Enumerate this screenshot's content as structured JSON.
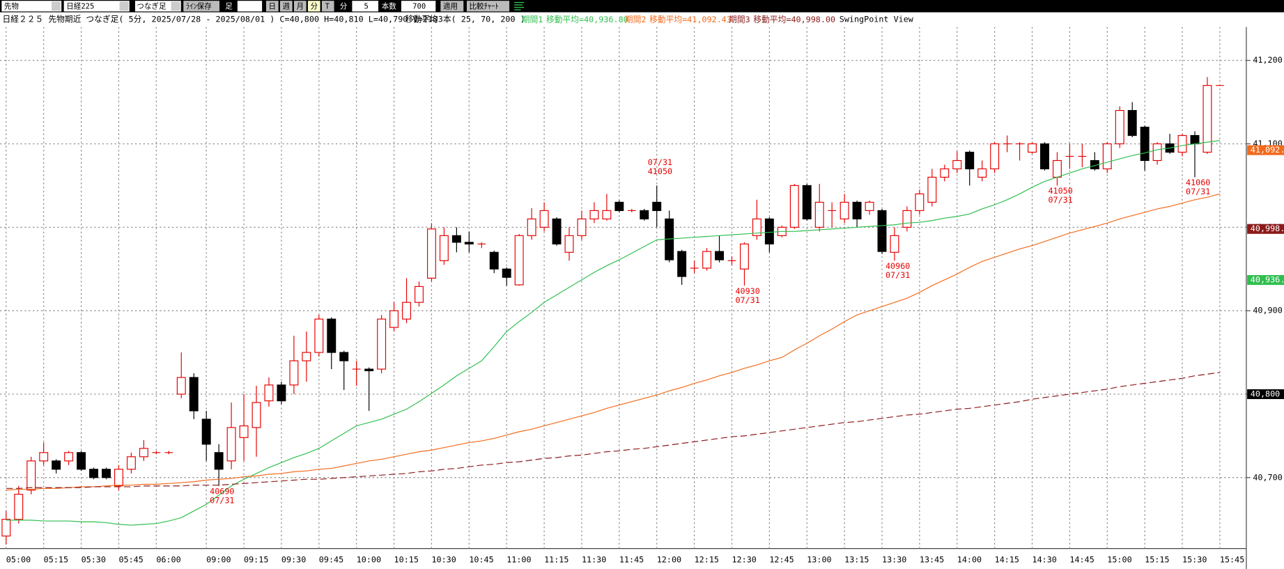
{
  "toolbar": {
    "market": "先物",
    "symbol": "日経225",
    "mode": "つなぎ足",
    "save": "ﾗｲﾝ保存",
    "foot": "足",
    "day": "日",
    "week": "週",
    "month": "月",
    "minute": "分",
    "tick": "T",
    "unit": "分",
    "interval": "5",
    "count_label": "本数",
    "count": "700",
    "apply": "適用",
    "compare": "比較ﾁｬｰﾄ"
  },
  "chart_data": {
    "type": "candlestick",
    "title": "日経２２５ 先物期近 つなぎ足( 5分, 2025/07/28 - 2025/08/01 )  C=40,800 H=40,810 L=40,790 V=218",
    "subtitle": "移動平均3本( 25, 70, 200 )",
    "view": "SwingPoint View",
    "up_color": "#e60000",
    "down_color": "#000000",
    "grid": true,
    "ylim": [
      40615,
      41240
    ],
    "yticks": [
      {
        "value": 40700,
        "label": "40,700"
      },
      {
        "value": 40800,
        "label": "40,800"
      },
      {
        "value": 40900,
        "label": "40,900"
      },
      {
        "value": 41000,
        "label": "41,000"
      },
      {
        "value": 41100,
        "label": "41,100"
      },
      {
        "value": 41200,
        "label": "41,200"
      }
    ],
    "close": 40800,
    "close_label": "40,800",
    "categories": [
      "05:00",
      null,
      null,
      "05:15",
      null,
      null,
      "05:30",
      null,
      null,
      "05:45",
      null,
      null,
      "06:00",
      null,
      null,
      null,
      "09:00",
      null,
      null,
      "09:15",
      null,
      null,
      "09:30",
      null,
      null,
      "09:45",
      null,
      null,
      "10:00",
      null,
      null,
      "10:15",
      null,
      null,
      "10:30",
      null,
      null,
      "10:45",
      null,
      null,
      "11:00",
      null,
      null,
      "11:15",
      null,
      null,
      "11:30",
      null,
      null,
      "11:45",
      null,
      null,
      "12:00",
      null,
      null,
      "12:15",
      null,
      null,
      "12:30",
      null,
      null,
      "12:45",
      null,
      null,
      "13:00",
      null,
      null,
      "13:15",
      null,
      null,
      "13:30",
      null,
      null,
      "13:45",
      null,
      null,
      "14:00",
      null,
      null,
      "14:15",
      null,
      null,
      "14:30",
      null,
      null,
      "14:45",
      null,
      null,
      "15:00",
      null,
      null,
      "15:15",
      null,
      null,
      "15:30",
      null,
      null,
      "15:45"
    ],
    "ohlc": [
      [
        40630,
        40660,
        40620,
        40650
      ],
      [
        40650,
        40690,
        40645,
        40680
      ],
      [
        40685,
        40725,
        40680,
        40720
      ],
      [
        40720,
        40742,
        40715,
        40730
      ],
      [
        40720,
        40722,
        40705,
        40710
      ],
      [
        40720,
        40732,
        40715,
        40730
      ],
      [
        40730,
        40732,
        40708,
        40710
      ],
      [
        40710,
        40712,
        40698,
        40700
      ],
      [
        40710,
        40712,
        40698,
        40700
      ],
      [
        40690,
        40715,
        40685,
        40710
      ],
      [
        40710,
        40730,
        40705,
        40725
      ],
      [
        40725,
        40745,
        40720,
        40735
      ],
      [
        40730,
        40732,
        40728,
        40730
      ],
      [
        40730,
        40732,
        40728,
        40730
      ],
      [
        40800,
        40850,
        40795,
        40820
      ],
      [
        40820,
        40825,
        40770,
        40780
      ],
      [
        40770,
        40780,
        40720,
        40740
      ],
      [
        40730,
        40740,
        40690,
        40710
      ],
      [
        40720,
        40790,
        40710,
        40760
      ],
      [
        40748,
        40800,
        40720,
        40762
      ],
      [
        40760,
        40810,
        40725,
        40790
      ],
      [
        40792,
        40820,
        40785,
        40811
      ],
      [
        40811,
        40815,
        40788,
        40792
      ],
      [
        40811,
        40870,
        40800,
        40840
      ],
      [
        40840,
        40875,
        40815,
        40850
      ],
      [
        40850,
        40895,
        40845,
        40890
      ],
      [
        40890,
        40892,
        40830,
        40850
      ],
      [
        40850,
        40852,
        40805,
        40840
      ],
      [
        40830,
        40840,
        40810,
        40830
      ],
      [
        40830,
        40832,
        40780,
        40828
      ],
      [
        40830,
        40895,
        40825,
        40890
      ],
      [
        40880,
        40910,
        40875,
        40900
      ],
      [
        40890,
        40939,
        40885,
        40910
      ],
      [
        40910,
        40935,
        40905,
        40929
      ],
      [
        40939,
        41005,
        40935,
        40998
      ],
      [
        40960,
        41000,
        40955,
        40990
      ],
      [
        40990,
        41000,
        40970,
        40982
      ],
      [
        40982,
        40995,
        40970,
        40980
      ],
      [
        40980,
        40982,
        40975,
        40980
      ],
      [
        40970,
        40972,
        40945,
        40950
      ],
      [
        40950,
        40952,
        40930,
        40940
      ],
      [
        40931,
        40992,
        40930,
        40990
      ],
      [
        40990,
        41023,
        40985,
        41010
      ],
      [
        41000,
        41030,
        40995,
        41020
      ],
      [
        41010,
        41012,
        40978,
        40980
      ],
      [
        40970,
        41000,
        40960,
        40990
      ],
      [
        40990,
        41020,
        40985,
        41010
      ],
      [
        41010,
        41030,
        41005,
        41020
      ],
      [
        41010,
        41040,
        41008,
        41020
      ],
      [
        41030,
        41032,
        41018,
        41020
      ],
      [
        41020,
        41022,
        41018,
        41020
      ],
      [
        41020,
        41022,
        41008,
        41010
      ],
      [
        41030,
        41050,
        41000,
        41020
      ],
      [
        41010,
        41020,
        40958,
        40961
      ],
      [
        40971,
        40973,
        40931,
        40941
      ],
      [
        40951,
        40960,
        40945,
        40951
      ],
      [
        40951,
        40975,
        40948,
        40971
      ],
      [
        40971,
        40990,
        40958,
        40961
      ],
      [
        40960,
        40965,
        40955,
        40960
      ],
      [
        40950,
        40982,
        40930,
        40980
      ],
      [
        40990,
        41033,
        40985,
        41010
      ],
      [
        41010,
        41012,
        40970,
        40980
      ],
      [
        40990,
        41002,
        40988,
        41000
      ],
      [
        41000,
        41052,
        40998,
        41050
      ],
      [
        41050,
        41052,
        41008,
        41010
      ],
      [
        41000,
        41052,
        40995,
        41030
      ],
      [
        41020,
        41030,
        41000,
        41020
      ],
      [
        41010,
        41040,
        41005,
        41030
      ],
      [
        41030,
        41032,
        41000,
        41010
      ],
      [
        41020,
        41032,
        41015,
        41030
      ],
      [
        41020,
        41022,
        40968,
        40971
      ],
      [
        40970,
        41000,
        40960,
        40990
      ],
      [
        41000,
        41025,
        40995,
        41020
      ],
      [
        41020,
        41045,
        41015,
        41040
      ],
      [
        41030,
        41070,
        41025,
        41060
      ],
      [
        41060,
        41075,
        41055,
        41070
      ],
      [
        41070,
        41091,
        41065,
        41080
      ],
      [
        41090,
        41092,
        41050,
        41070
      ],
      [
        41060,
        41080,
        41055,
        41070
      ],
      [
        41070,
        41102,
        41065,
        41100
      ],
      [
        41100,
        41110,
        41090,
        41100
      ],
      [
        41100,
        41102,
        41080,
        41100
      ],
      [
        41090,
        41102,
        41088,
        41100
      ],
      [
        41100,
        41102,
        41068,
        41070
      ],
      [
        41060,
        41090,
        41050,
        41080
      ],
      [
        41085,
        41100,
        41070,
        41085
      ],
      [
        41085,
        41100,
        41072,
        41085
      ],
      [
        41080,
        41090,
        41068,
        41070
      ],
      [
        41070,
        41102,
        41065,
        41100
      ],
      [
        41100,
        41145,
        41095,
        41140
      ],
      [
        41140,
        41150,
        41108,
        41110
      ],
      [
        41120,
        41122,
        41068,
        41080
      ],
      [
        41080,
        41102,
        41075,
        41100
      ],
      [
        41100,
        41112,
        41088,
        41090
      ],
      [
        41090,
        41112,
        41085,
        41110
      ],
      [
        41110,
        41115,
        41060,
        41100
      ],
      [
        41090,
        41180,
        41088,
        41170
      ],
      [
        41170,
        41170,
        41170,
        41170
      ]
    ],
    "series": [
      {
        "name": "期間1",
        "ma_text": "移動平均=",
        "current": 40936.8,
        "current_label": "40,936.80",
        "color": "#2fbf4f",
        "dashed": false,
        "values": [
          40649,
          40649,
          40649,
          40648,
          40648,
          40648,
          40647,
          40647,
          40646,
          40644,
          40643,
          40644,
          40645,
          40648,
          40652,
          40660,
          40668,
          40679,
          40690,
          40698,
          40705,
          40712,
          40718,
          40724,
          40729,
          40735,
          40744,
          40753,
          40762,
          40766,
          40770,
          40776,
          40782,
          40791,
          40801,
          40811,
          40822,
          40831,
          40840,
          40857,
          40875,
          40887,
          40898,
          40910,
          40919,
          40928,
          40937,
          40946,
          40954,
          40961,
          40969,
          40977,
          40985,
          40986,
          40987,
          40988,
          40989,
          40990,
          40991,
          40992,
          40993,
          40994,
          40995,
          40995,
          40996,
          40997,
          40998,
          40999,
          41000,
          41001,
          41002,
          41003,
          41005,
          41006,
          41008,
          41011,
          41013,
          41016,
          41022,
          41027,
          41033,
          41040,
          41048,
          41055,
          41060,
          41065,
          41070,
          41074,
          41078,
          41082,
          41086,
          41089,
          41093,
          41095,
          41098,
          41100,
          41102,
          41104
        ]
      },
      {
        "name": "期間2",
        "ma_text": "移動平均=",
        "current": 41092.43,
        "current_label": "41,092.43",
        "color": "#f26b1d",
        "dashed": false,
        "values": [
          40685,
          40686,
          40686,
          40687,
          40687,
          40688,
          40689,
          40689,
          40690,
          40691,
          40691,
          40692,
          40692,
          40693,
          40694,
          40695,
          40697,
          40698,
          40699,
          40701,
          40702,
          40704,
          40705,
          40707,
          40708,
          40710,
          40711,
          40714,
          40717,
          40720,
          40722,
          40725,
          40728,
          40731,
          40733,
          40736,
          40739,
          40742,
          40744,
          40747,
          40751,
          40755,
          40758,
          40762,
          40766,
          40770,
          40774,
          40778,
          40783,
          40787,
          40791,
          40795,
          40799,
          40804,
          40808,
          40813,
          40817,
          40822,
          40826,
          40831,
          40835,
          40840,
          40844,
          40853,
          40861,
          40870,
          40878,
          40887,
          40895,
          40900,
          40905,
          40910,
          40915,
          40922,
          40930,
          40937,
          40944,
          40952,
          40959,
          40964,
          40969,
          40974,
          40978,
          40983,
          40988,
          40993,
          40997,
          41001,
          41005,
          41010,
          41014,
          41018,
          41022,
          41025,
          41029,
          41033,
          41036,
          41040
        ]
      },
      {
        "name": "期間3",
        "ma_text": "移動平均=",
        "current": 40998.0,
        "current_label": "40,998.00",
        "color": "#8b1a1a",
        "dashed": true,
        "values": [
          40687,
          40687,
          40688,
          40688,
          40688,
          40688,
          40688,
          40689,
          40689,
          40689,
          40689,
          40690,
          40690,
          40690,
          40690,
          40691,
          40691,
          40691,
          40692,
          40693,
          40694,
          40695,
          40696,
          40697,
          40698,
          40698,
          40699,
          40700,
          40701,
          40702,
          40703,
          40704,
          40705,
          40707,
          40708,
          40710,
          40711,
          40713,
          40715,
          40716,
          40718,
          40719,
          40721,
          40723,
          40724,
          40726,
          40727,
          40729,
          40731,
          40732,
          40734,
          40735,
          40737,
          40739,
          40741,
          40743,
          40745,
          40747,
          40749,
          40750,
          40752,
          40754,
          40756,
          40758,
          40760,
          40762,
          40764,
          40766,
          40767,
          40769,
          40771,
          40773,
          40775,
          40776,
          40778,
          40780,
          40782,
          40783,
          40785,
          40787,
          40789,
          40791,
          40794,
          40796,
          40798,
          40800,
          40802,
          40804,
          40806,
          40809,
          40811,
          40813,
          40815,
          40817,
          40819,
          40822,
          40824,
          40826
        ]
      }
    ],
    "annotations": [
      {
        "x": 17,
        "value": 40690,
        "date": "07/31"
      },
      {
        "x": 52,
        "value": 41050,
        "date": "07/31"
      },
      {
        "x": 59,
        "value": 40930,
        "date": "07/31"
      },
      {
        "x": 71,
        "value": 40960,
        "date": "07/31"
      },
      {
        "x": 84,
        "value": 41050,
        "date": "07/31"
      },
      {
        "x": 95,
        "value": 41060,
        "date": "07/31"
      }
    ]
  }
}
